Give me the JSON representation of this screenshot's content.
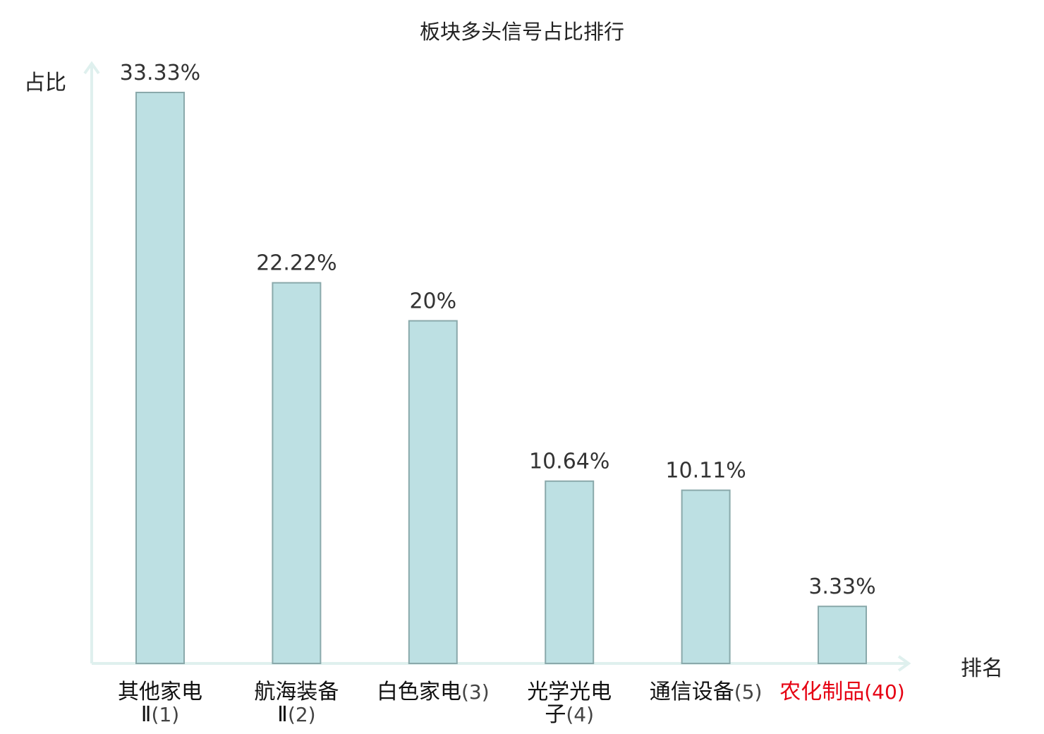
{
  "chart_data": {
    "type": "bar",
    "title": "板块多头信号占比排行",
    "ylabel": "占比",
    "xlabel": "排名",
    "categories": [
      {
        "name_lines": [
          "其他家电",
          "Ⅱ"
        ],
        "rank": "(1)",
        "highlight": false
      },
      {
        "name_lines": [
          "航海装备",
          "Ⅱ"
        ],
        "rank": "(2)",
        "highlight": false
      },
      {
        "name_lines": [
          "白色家电"
        ],
        "rank": "(3)",
        "highlight": false
      },
      {
        "name_lines": [
          "光学光电",
          "子"
        ],
        "rank": "(4)",
        "highlight": false
      },
      {
        "name_lines": [
          "通信设备"
        ],
        "rank": "(5)",
        "highlight": false
      },
      {
        "name_lines": [
          "农化制品"
        ],
        "rank": "(40)",
        "highlight": true
      }
    ],
    "values": [
      33.33,
      22.22,
      20,
      10.64,
      10.11,
      3.33
    ],
    "value_labels": [
      "33.33%",
      "22.22%",
      "20%",
      "10.64%",
      "10.11%",
      "3.33%"
    ],
    "ylim": [
      0,
      34.6
    ],
    "grid": false,
    "colors": {
      "bar_fill": "#bde0e3",
      "bar_stroke": "#8aa9ab",
      "axis": "#dff0ee",
      "highlight": "#e60012"
    }
  }
}
